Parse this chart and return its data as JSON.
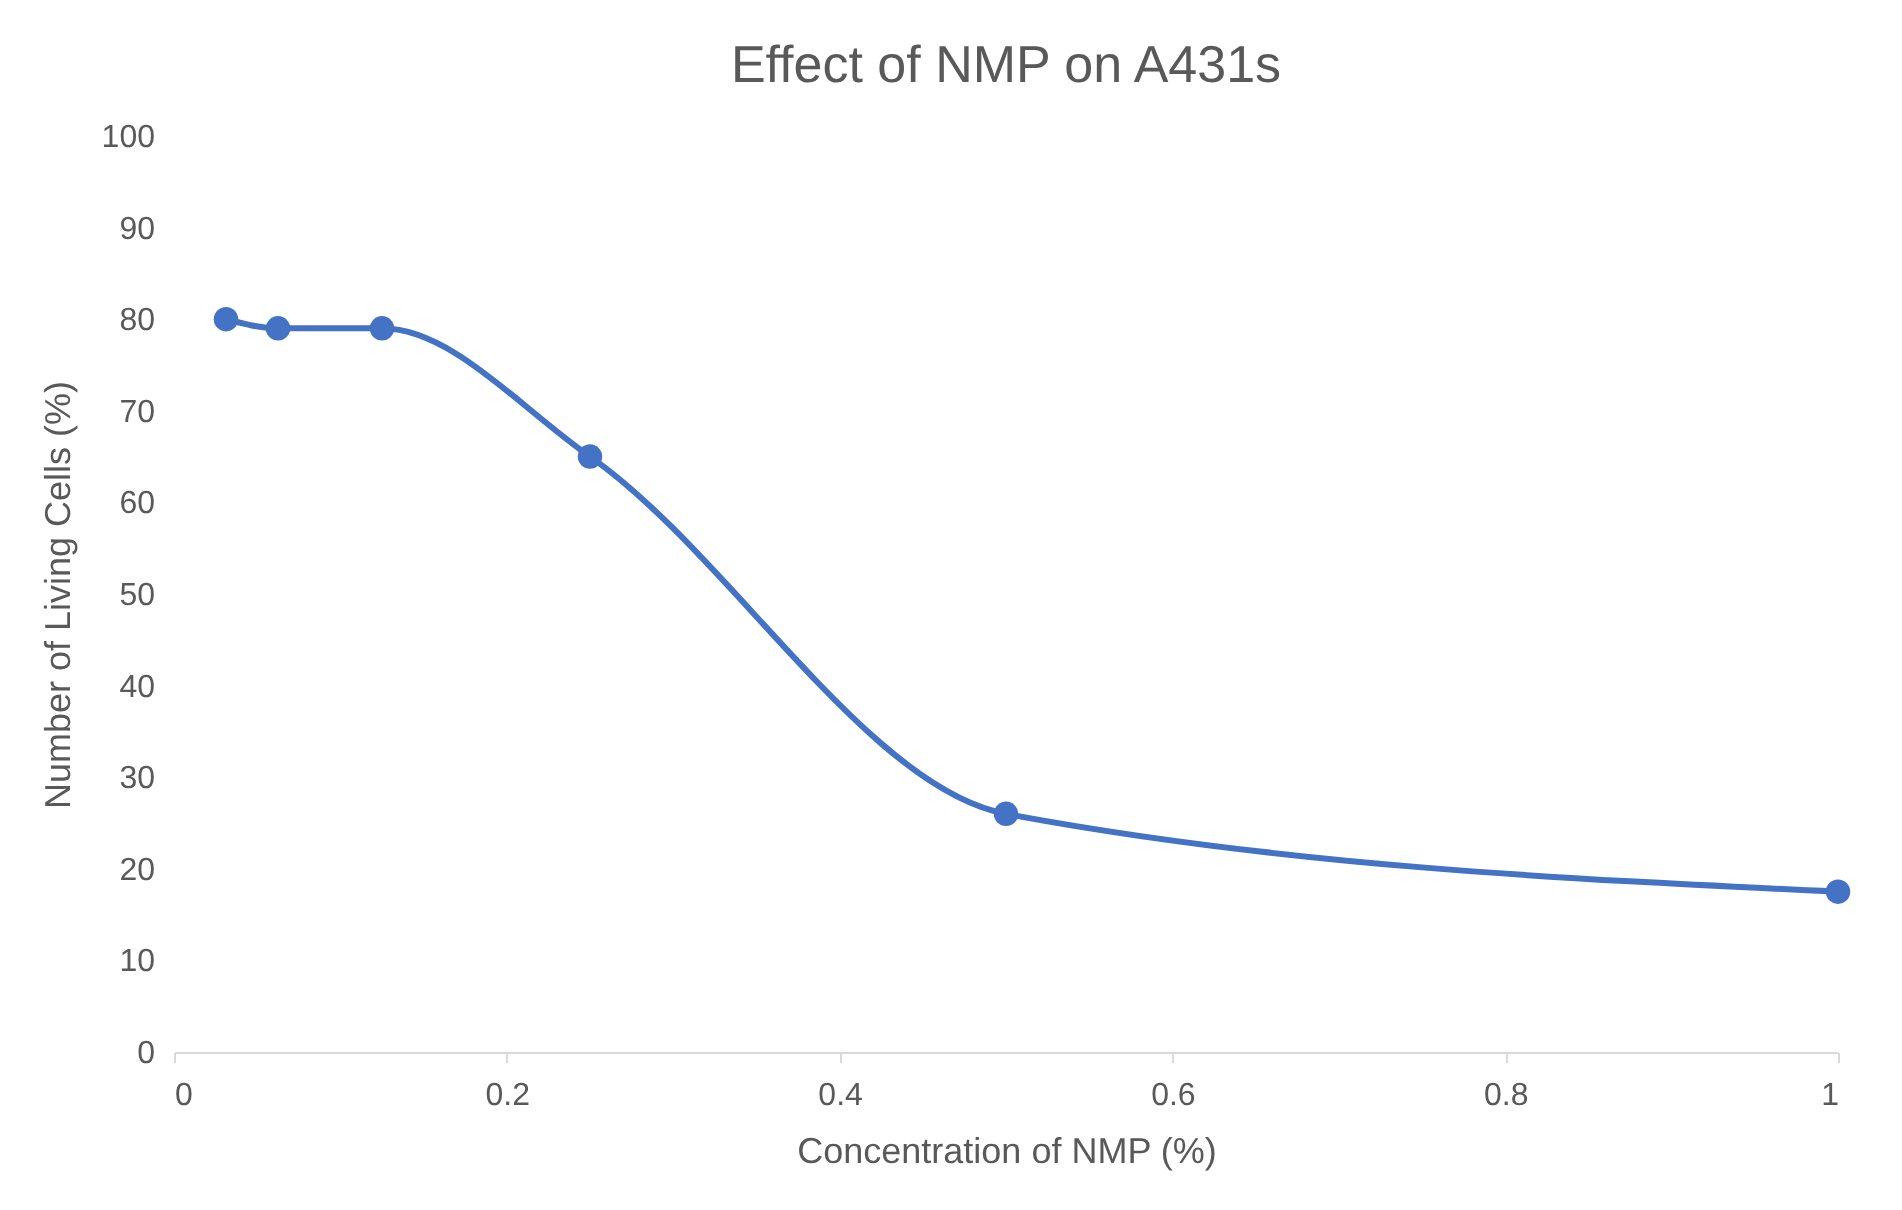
{
  "chart_data": {
    "type": "line",
    "title": "Effect of NMP on A431s",
    "xlabel": "Concentration of NMP (%)",
    "ylabel": "Number of Living Cells (%)",
    "x": [
      0.03125,
      0.0625,
      0.125,
      0.25,
      0.5,
      1
    ],
    "series": [
      {
        "color": "#4472c4",
        "values": [
          80,
          79,
          79,
          65,
          26,
          17.5
        ]
      }
    ],
    "xlim": [
      0,
      1
    ],
    "xticks": [
      0,
      0.2,
      0.4,
      0.6,
      0.8,
      1
    ],
    "ylim": [
      0,
      100
    ],
    "yticks": [
      0,
      10,
      20,
      30,
      40,
      50,
      60,
      70,
      80,
      90,
      100
    ],
    "grid": false,
    "marker": "circle",
    "line_style": "solid"
  }
}
